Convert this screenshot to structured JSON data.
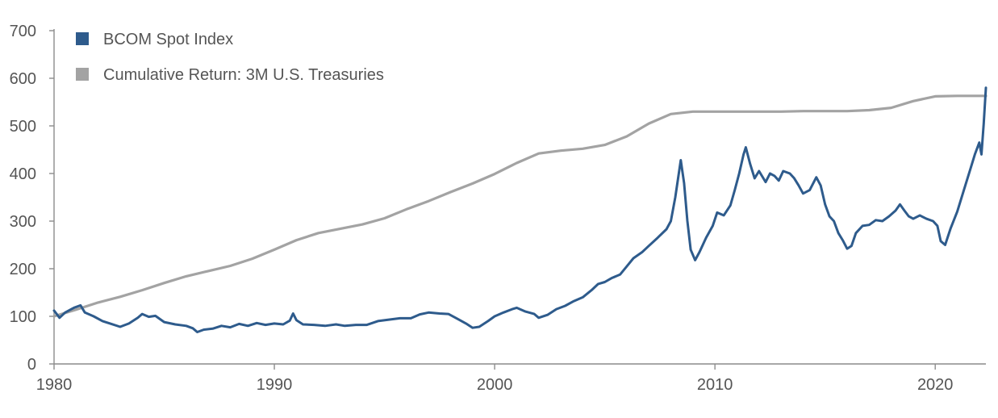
{
  "chart_data": {
    "type": "line",
    "title": "",
    "xlabel": "",
    "ylabel": "",
    "xlim": [
      1980,
      2022.3
    ],
    "ylim": [
      0,
      700
    ],
    "x_ticks": [
      1980,
      1990,
      2000,
      2010,
      2020
    ],
    "x_tick_labels": [
      "1980",
      "1990",
      "2000",
      "2010",
      "2020"
    ],
    "y_ticks": [
      0,
      100,
      200,
      300,
      400,
      500,
      600,
      700
    ],
    "y_tick_labels": [
      "0",
      "100",
      "200",
      "300",
      "400",
      "500",
      "600",
      "700"
    ],
    "grid": false,
    "legend_position": "top-left",
    "series": [
      {
        "name": "BCOM Spot Index",
        "color": "#2e5b8c",
        "points": [
          [
            1980.0,
            112
          ],
          [
            1980.25,
            97
          ],
          [
            1980.5,
            108
          ],
          [
            1980.9,
            118
          ],
          [
            1981.2,
            123
          ],
          [
            1981.4,
            108
          ],
          [
            1981.8,
            100
          ],
          [
            1982.2,
            90
          ],
          [
            1982.6,
            84
          ],
          [
            1983.0,
            78
          ],
          [
            1983.4,
            85
          ],
          [
            1983.8,
            97
          ],
          [
            1984.0,
            105
          ],
          [
            1984.3,
            99
          ],
          [
            1984.6,
            101
          ],
          [
            1985.0,
            88
          ],
          [
            1985.5,
            83
          ],
          [
            1986.0,
            80
          ],
          [
            1986.3,
            75
          ],
          [
            1986.5,
            67
          ],
          [
            1986.8,
            72
          ],
          [
            1987.2,
            74
          ],
          [
            1987.6,
            80
          ],
          [
            1988.0,
            77
          ],
          [
            1988.4,
            84
          ],
          [
            1988.8,
            80
          ],
          [
            1989.2,
            86
          ],
          [
            1989.6,
            82
          ],
          [
            1990.0,
            85
          ],
          [
            1990.4,
            83
          ],
          [
            1990.7,
            91
          ],
          [
            1990.85,
            106
          ],
          [
            1991.0,
            92
          ],
          [
            1991.3,
            83
          ],
          [
            1991.8,
            82
          ],
          [
            1992.3,
            80
          ],
          [
            1992.8,
            83
          ],
          [
            1993.2,
            80
          ],
          [
            1993.7,
            82
          ],
          [
            1994.2,
            82
          ],
          [
            1994.7,
            90
          ],
          [
            1995.2,
            93
          ],
          [
            1995.7,
            96
          ],
          [
            1996.2,
            96
          ],
          [
            1996.6,
            104
          ],
          [
            1997.0,
            108
          ],
          [
            1997.5,
            106
          ],
          [
            1997.9,
            105
          ],
          [
            1998.3,
            95
          ],
          [
            1998.7,
            85
          ],
          [
            1999.0,
            76
          ],
          [
            1999.3,
            78
          ],
          [
            1999.7,
            90
          ],
          [
            2000.0,
            100
          ],
          [
            2000.4,
            108
          ],
          [
            2000.8,
            115
          ],
          [
            2001.0,
            118
          ],
          [
            2001.4,
            110
          ],
          [
            2001.8,
            105
          ],
          [
            2002.0,
            97
          ],
          [
            2002.4,
            103
          ],
          [
            2002.8,
            115
          ],
          [
            2003.2,
            122
          ],
          [
            2003.6,
            132
          ],
          [
            2004.0,
            140
          ],
          [
            2004.4,
            155
          ],
          [
            2004.7,
            168
          ],
          [
            2005.0,
            172
          ],
          [
            2005.3,
            180
          ],
          [
            2005.7,
            188
          ],
          [
            2006.0,
            205
          ],
          [
            2006.3,
            222
          ],
          [
            2006.7,
            235
          ],
          [
            2007.0,
            248
          ],
          [
            2007.4,
            265
          ],
          [
            2007.8,
            283
          ],
          [
            2008.0,
            300
          ],
          [
            2008.2,
            350
          ],
          [
            2008.45,
            428
          ],
          [
            2008.6,
            380
          ],
          [
            2008.75,
            300
          ],
          [
            2008.9,
            240
          ],
          [
            2009.1,
            218
          ],
          [
            2009.3,
            235
          ],
          [
            2009.6,
            265
          ],
          [
            2009.9,
            290
          ],
          [
            2010.1,
            318
          ],
          [
            2010.4,
            312
          ],
          [
            2010.7,
            333
          ],
          [
            2010.9,
            365
          ],
          [
            2011.1,
            400
          ],
          [
            2011.3,
            440
          ],
          [
            2011.4,
            455
          ],
          [
            2011.6,
            420
          ],
          [
            2011.8,
            390
          ],
          [
            2012.0,
            405
          ],
          [
            2012.3,
            382
          ],
          [
            2012.5,
            400
          ],
          [
            2012.7,
            395
          ],
          [
            2012.9,
            385
          ],
          [
            2013.1,
            405
          ],
          [
            2013.4,
            400
          ],
          [
            2013.6,
            390
          ],
          [
            2013.8,
            375
          ],
          [
            2014.0,
            358
          ],
          [
            2014.3,
            365
          ],
          [
            2014.6,
            392
          ],
          [
            2014.8,
            375
          ],
          [
            2015.0,
            335
          ],
          [
            2015.2,
            310
          ],
          [
            2015.4,
            300
          ],
          [
            2015.6,
            275
          ],
          [
            2015.8,
            260
          ],
          [
            2016.0,
            242
          ],
          [
            2016.2,
            248
          ],
          [
            2016.4,
            275
          ],
          [
            2016.7,
            290
          ],
          [
            2017.0,
            292
          ],
          [
            2017.3,
            302
          ],
          [
            2017.6,
            300
          ],
          [
            2017.9,
            310
          ],
          [
            2018.2,
            322
          ],
          [
            2018.4,
            335
          ],
          [
            2018.6,
            322
          ],
          [
            2018.8,
            310
          ],
          [
            2019.0,
            305
          ],
          [
            2019.3,
            312
          ],
          [
            2019.6,
            305
          ],
          [
            2019.9,
            300
          ],
          [
            2020.1,
            290
          ],
          [
            2020.25,
            258
          ],
          [
            2020.45,
            250
          ],
          [
            2020.7,
            285
          ],
          [
            2021.0,
            320
          ],
          [
            2021.3,
            365
          ],
          [
            2021.6,
            410
          ],
          [
            2021.8,
            440
          ],
          [
            2022.0,
            465
          ],
          [
            2022.1,
            440
          ],
          [
            2022.2,
            505
          ],
          [
            2022.3,
            580
          ]
        ]
      },
      {
        "name": "Cumulative Return: 3M U.S. Treasuries",
        "color": "#a3a3a3",
        "points": [
          [
            1980.0,
            100
          ],
          [
            1981.0,
            114
          ],
          [
            1982.0,
            129
          ],
          [
            1983.0,
            141
          ],
          [
            1984.0,
            155
          ],
          [
            1985.0,
            170
          ],
          [
            1986.0,
            184
          ],
          [
            1987.0,
            195
          ],
          [
            1988.0,
            206
          ],
          [
            1989.0,
            221
          ],
          [
            1990.0,
            240
          ],
          [
            1991.0,
            260
          ],
          [
            1992.0,
            275
          ],
          [
            1993.0,
            284
          ],
          [
            1994.0,
            293
          ],
          [
            1995.0,
            306
          ],
          [
            1996.0,
            325
          ],
          [
            1997.0,
            342
          ],
          [
            1998.0,
            361
          ],
          [
            1999.0,
            379
          ],
          [
            2000.0,
            399
          ],
          [
            2001.0,
            422
          ],
          [
            2002.0,
            442
          ],
          [
            2003.0,
            448
          ],
          [
            2004.0,
            452
          ],
          [
            2005.0,
            460
          ],
          [
            2006.0,
            478
          ],
          [
            2007.0,
            505
          ],
          [
            2008.0,
            525
          ],
          [
            2009.0,
            530
          ],
          [
            2010.0,
            530
          ],
          [
            2011.0,
            530
          ],
          [
            2012.0,
            530
          ],
          [
            2013.0,
            530
          ],
          [
            2014.0,
            531
          ],
          [
            2015.0,
            531
          ],
          [
            2016.0,
            531
          ],
          [
            2017.0,
            533
          ],
          [
            2018.0,
            538
          ],
          [
            2019.0,
            552
          ],
          [
            2020.0,
            562
          ],
          [
            2021.0,
            563
          ],
          [
            2022.3,
            563
          ]
        ]
      }
    ]
  }
}
